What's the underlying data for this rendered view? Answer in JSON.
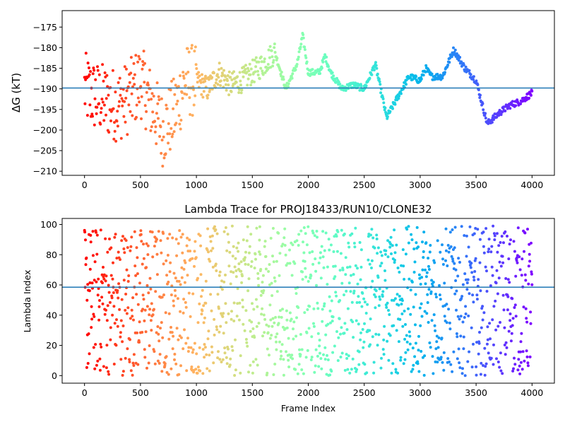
{
  "chart_data": [
    {
      "type": "scatter",
      "title": "",
      "xlabel": "",
      "ylabel": "ΔG (kT)",
      "xlim": [
        -200,
        4200
      ],
      "ylim": [
        -211,
        -171
      ],
      "xticks": [
        0,
        500,
        1000,
        1500,
        2000,
        2500,
        3000,
        3500,
        4000
      ],
      "yticks": [
        -210,
        -205,
        -200,
        -195,
        -190,
        -185,
        -180,
        -175
      ],
      "xtick_labels": [
        "0",
        "500",
        "1000",
        "1500",
        "2000",
        "2500",
        "3000",
        "3500",
        "4000"
      ],
      "ytick_labels": [
        "−210",
        "−205",
        "−200",
        "−195",
        "−190",
        "−185",
        "−180",
        "−175"
      ],
      "hline": -189.8,
      "hline_color": "#1f77b4",
      "colormap": "rainbow (red at frame 0 → violet at frame 4000)",
      "grid": false,
      "approx_trend": [
        [
          0,
          -190
        ],
        [
          100,
          -192
        ],
        [
          200,
          -193
        ],
        [
          300,
          -194
        ],
        [
          400,
          -192
        ],
        [
          500,
          -188
        ],
        [
          600,
          -194
        ],
        [
          700,
          -200
        ],
        [
          800,
          -196
        ],
        [
          900,
          -188
        ],
        [
          1000,
          -188
        ],
        [
          1100,
          -190
        ],
        [
          1200,
          -186
        ],
        [
          1300,
          -189
        ],
        [
          1400,
          -188
        ],
        [
          1500,
          -186
        ],
        [
          1600,
          -184
        ],
        [
          1700,
          -181
        ],
        [
          1800,
          -190
        ],
        [
          1900,
          -184
        ],
        [
          1950,
          -177
        ],
        [
          2000,
          -186
        ],
        [
          2100,
          -186
        ],
        [
          2150,
          -182
        ],
        [
          2200,
          -186
        ],
        [
          2300,
          -190
        ],
        [
          2400,
          -189
        ],
        [
          2500,
          -190
        ],
        [
          2600,
          -184
        ],
        [
          2700,
          -197
        ],
        [
          2800,
          -192
        ],
        [
          2900,
          -187
        ],
        [
          3000,
          -188
        ],
        [
          3050,
          -185
        ],
        [
          3100,
          -187
        ],
        [
          3200,
          -187
        ],
        [
          3300,
          -180.5
        ],
        [
          3400,
          -185
        ],
        [
          3500,
          -188
        ],
        [
          3600,
          -198.5
        ],
        [
          3700,
          -196
        ],
        [
          3800,
          -194
        ],
        [
          3900,
          -193
        ],
        [
          4000,
          -191
        ]
      ]
    },
    {
      "type": "scatter",
      "title": "Lambda Trace for PROJ18433/RUN10/CLONE32",
      "xlabel": "Frame Index",
      "ylabel": "Lambda Index",
      "xlim": [
        -200,
        4200
      ],
      "ylim": [
        -5,
        104
      ],
      "xticks": [
        0,
        500,
        1000,
        1500,
        2000,
        2500,
        3000,
        3500,
        4000
      ],
      "yticks": [
        0,
        20,
        40,
        60,
        80,
        100
      ],
      "xtick_labels": [
        "0",
        "500",
        "1000",
        "1500",
        "2000",
        "2500",
        "3000",
        "3500",
        "4000"
      ],
      "ytick_labels": [
        "0",
        "20",
        "40",
        "60",
        "80",
        "100"
      ],
      "hline": 58.5,
      "hline_color": "#1f77b4",
      "colormap": "rainbow (red at frame 0 → violet at frame 4000)",
      "grid": false,
      "value_range": [
        0,
        100
      ],
      "frame_range": [
        0,
        4000
      ]
    }
  ]
}
